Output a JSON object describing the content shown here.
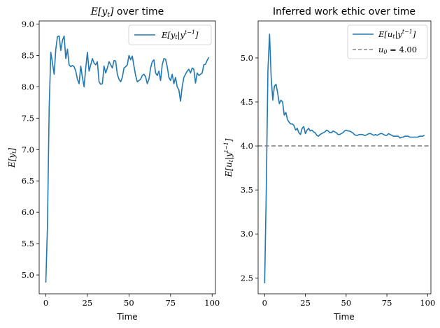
{
  "chart_data": [
    {
      "type": "line",
      "title": "E[y_t] over time",
      "xlabel": "Time",
      "ylabel": "E[y_t]",
      "xlim": [
        -4,
        102
      ],
      "ylim": [
        4.7,
        9.05
      ],
      "xticks": [
        0,
        25,
        50,
        75,
        100
      ],
      "xtick_labels": [
        "0",
        "25",
        "50",
        "75",
        "100"
      ],
      "yticks": [
        5.0,
        5.5,
        6.0,
        6.5,
        7.0,
        7.5,
        8.0,
        8.5,
        9.0
      ],
      "ytick_labels": [
        "5.0",
        "5.5",
        "6.0",
        "6.5",
        "7.0",
        "7.5",
        "8.0",
        "8.5",
        "9.0"
      ],
      "legend_position": "top-right",
      "series": [
        {
          "name": "E[y_t|y^{t-1}]",
          "color": "#1f77b4",
          "style": "solid",
          "x": [
            0,
            1,
            2,
            3,
            4,
            5,
            6,
            7,
            8,
            9,
            10,
            11,
            12,
            13,
            14,
            15,
            16,
            17,
            18,
            19,
            20,
            21,
            22,
            23,
            24,
            25,
            26,
            27,
            28,
            29,
            30,
            31,
            32,
            33,
            34,
            35,
            36,
            37,
            38,
            39,
            40,
            41,
            42,
            43,
            44,
            45,
            46,
            47,
            48,
            49,
            50,
            51,
            52,
            53,
            54,
            55,
            56,
            57,
            58,
            59,
            60,
            61,
            62,
            63,
            64,
            65,
            66,
            67,
            68,
            69,
            70,
            71,
            72,
            73,
            74,
            75,
            76,
            77,
            78,
            79,
            80,
            81,
            82,
            83,
            84,
            85,
            86,
            87,
            88,
            89,
            90,
            91,
            92,
            93,
            94,
            95,
            96,
            97,
            98
          ],
          "values": [
            4.88,
            5.8,
            7.65,
            8.55,
            8.38,
            8.2,
            8.6,
            8.8,
            8.81,
            8.58,
            8.74,
            8.81,
            8.45,
            8.6,
            8.35,
            8.32,
            8.34,
            8.32,
            8.25,
            8.12,
            8.05,
            8.33,
            8.15,
            8.0,
            8.3,
            8.55,
            8.25,
            8.35,
            8.45,
            8.38,
            8.35,
            8.4,
            8.08,
            8.04,
            8.05,
            8.33,
            8.22,
            8.3,
            8.4,
            8.35,
            8.3,
            8.42,
            8.41,
            8.2,
            8.12,
            8.08,
            8.15,
            8.3,
            8.32,
            8.35,
            8.5,
            8.43,
            8.49,
            8.33,
            8.18,
            8.08,
            8.1,
            8.12,
            8.18,
            8.2,
            8.16,
            8.05,
            8.12,
            8.3,
            8.4,
            8.43,
            8.22,
            8.18,
            8.25,
            8.1,
            8.35,
            8.45,
            8.44,
            8.32,
            8.15,
            8.1,
            8.2,
            8.05,
            8.15,
            8.0,
            7.95,
            7.77,
            8.0,
            8.15,
            8.2,
            8.25,
            8.28,
            8.22,
            8.3,
            8.28,
            8.06,
            8.22,
            8.18,
            8.2,
            8.22,
            8.35,
            8.36,
            8.42,
            8.47
          ]
        }
      ]
    },
    {
      "type": "line",
      "title": "Inferred work ethic over time",
      "xlabel": "Time",
      "ylabel": "E[u_t|y^{t-1}]",
      "xlim": [
        -4,
        102
      ],
      "ylim": [
        2.32,
        5.42
      ],
      "xticks": [
        0,
        25,
        50,
        75,
        100
      ],
      "xtick_labels": [
        "0",
        "25",
        "50",
        "75",
        "100"
      ],
      "yticks": [
        2.5,
        3.0,
        3.5,
        4.0,
        4.5,
        5.0
      ],
      "ytick_labels": [
        "2.5",
        "3.0",
        "3.5",
        "4.0",
        "4.5",
        "5.0"
      ],
      "legend_position": "top-right",
      "series": [
        {
          "name": "E[u_t|y^{t-1}]",
          "color": "#1f77b4",
          "style": "solid",
          "x": [
            0,
            1,
            2,
            3,
            4,
            5,
            6,
            7,
            8,
            9,
            10,
            11,
            12,
            13,
            14,
            15,
            16,
            17,
            18,
            19,
            20,
            21,
            22,
            23,
            24,
            25,
            26,
            27,
            28,
            29,
            30,
            31,
            32,
            33,
            34,
            35,
            36,
            37,
            38,
            39,
            40,
            41,
            42,
            43,
            44,
            45,
            46,
            47,
            48,
            49,
            50,
            51,
            52,
            53,
            54,
            55,
            56,
            57,
            58,
            59,
            60,
            61,
            62,
            63,
            64,
            65,
            66,
            67,
            68,
            69,
            70,
            71,
            72,
            73,
            74,
            75,
            76,
            77,
            78,
            79,
            80,
            81,
            82,
            83,
            84,
            85,
            86,
            87,
            88,
            89,
            90,
            91,
            92,
            93,
            94,
            95,
            96,
            97,
            98
          ],
          "values": [
            2.44,
            3.5,
            4.85,
            5.27,
            4.78,
            4.52,
            4.68,
            4.7,
            4.6,
            4.48,
            4.52,
            4.5,
            4.35,
            4.38,
            4.3,
            4.27,
            4.25,
            4.25,
            4.23,
            4.18,
            4.2,
            4.15,
            4.13,
            4.2,
            4.22,
            4.14,
            4.18,
            4.2,
            4.17,
            4.18,
            4.16,
            4.15,
            4.12,
            4.11,
            4.13,
            4.14,
            4.15,
            4.16,
            4.18,
            4.17,
            4.15,
            4.15,
            4.17,
            4.16,
            4.15,
            4.13,
            4.13,
            4.14,
            4.15,
            4.17,
            4.18,
            4.17,
            4.17,
            4.16,
            4.15,
            4.13,
            4.12,
            4.12,
            4.13,
            4.13,
            4.13,
            4.12,
            4.12,
            4.13,
            4.14,
            4.14,
            4.13,
            4.12,
            4.13,
            4.12,
            4.13,
            4.14,
            4.14,
            4.13,
            4.12,
            4.12,
            4.14,
            4.13,
            4.12,
            4.11,
            4.11,
            4.11,
            4.11,
            4.09,
            4.1,
            4.1,
            4.11,
            4.11,
            4.11,
            4.1,
            4.1,
            4.1,
            4.1,
            4.1,
            4.1,
            4.11,
            4.11,
            4.11,
            4.12
          ]
        },
        {
          "name": "u_0 = 4.00",
          "color": "#808080",
          "style": "dashed",
          "hline": 4.0
        }
      ]
    }
  ]
}
